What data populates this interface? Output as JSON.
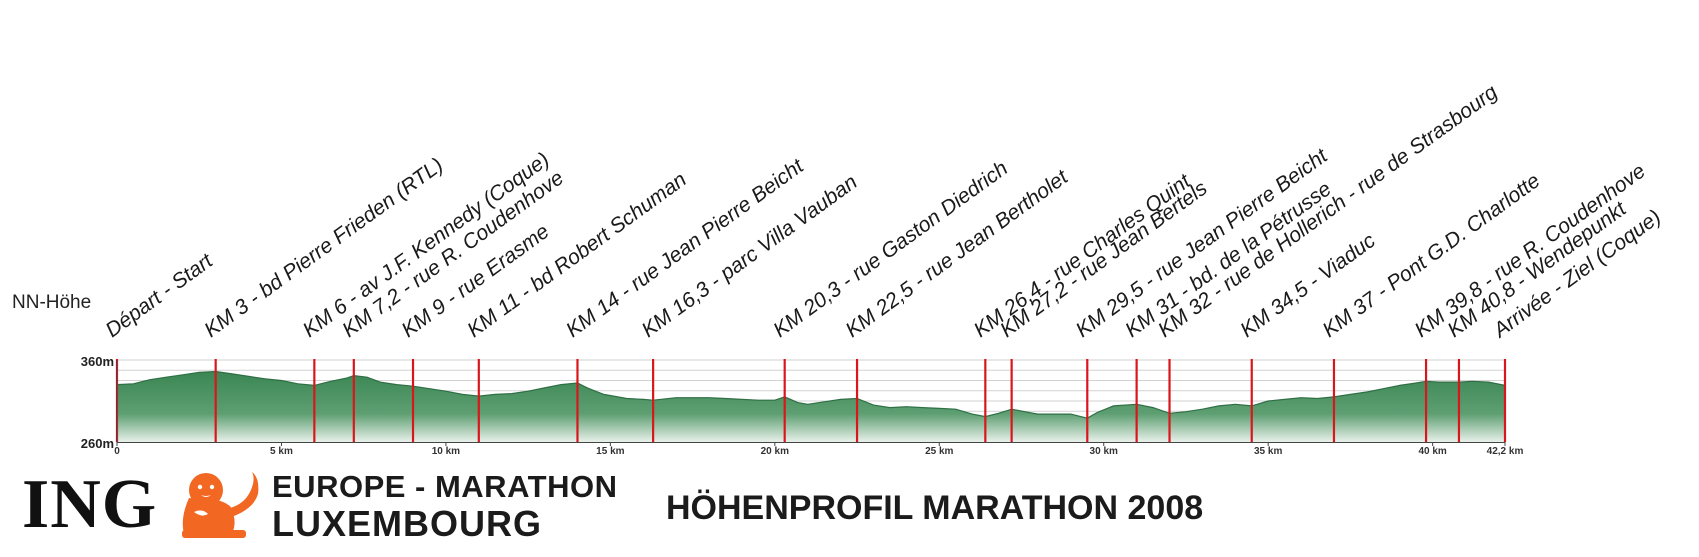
{
  "chart_data": {
    "type": "area",
    "title": "HÖHENPROFIL MARATHON 2008",
    "ylabel": "NN-Höhe",
    "ylim": [
      260,
      360
    ],
    "y_ticks": [
      "360m",
      "260m"
    ],
    "xlim": [
      0,
      42.2
    ],
    "x_ticks": [
      {
        "value": 0,
        "label": "0"
      },
      {
        "value": 5,
        "label": "5 km"
      },
      {
        "value": 10,
        "label": "10 km"
      },
      {
        "value": 15,
        "label": "15 km"
      },
      {
        "value": 20,
        "label": "20 km"
      },
      {
        "value": 25,
        "label": "25 km"
      },
      {
        "value": 30,
        "label": "30 km"
      },
      {
        "value": 35,
        "label": "35 km"
      },
      {
        "value": 40,
        "label": "40 km"
      },
      {
        "value": 42.2,
        "label": "42,2 km"
      }
    ],
    "grid": true,
    "fill_color": "#3c8a57",
    "marker_color": "#d9161c",
    "profile": [
      [
        0,
        330
      ],
      [
        0.5,
        331
      ],
      [
        1,
        336
      ],
      [
        1.5,
        339
      ],
      [
        2,
        342
      ],
      [
        2.5,
        345
      ],
      [
        3,
        346
      ],
      [
        3.5,
        343
      ],
      [
        4,
        340
      ],
      [
        4.5,
        337
      ],
      [
        5,
        335
      ],
      [
        5.5,
        331
      ],
      [
        6,
        329
      ],
      [
        6.5,
        334
      ],
      [
        7,
        338
      ],
      [
        7.2,
        341
      ],
      [
        7.6,
        339
      ],
      [
        8,
        333
      ],
      [
        8.5,
        330
      ],
      [
        9,
        328
      ],
      [
        9.5,
        325
      ],
      [
        10,
        322
      ],
      [
        10.5,
        318
      ],
      [
        11,
        316
      ],
      [
        11.5,
        318
      ],
      [
        12,
        319
      ],
      [
        12.5,
        322
      ],
      [
        13,
        326
      ],
      [
        13.5,
        330
      ],
      [
        14,
        332
      ],
      [
        14.3,
        326
      ],
      [
        14.8,
        318
      ],
      [
        15.5,
        313
      ],
      [
        16,
        312
      ],
      [
        16.3,
        311
      ],
      [
        17,
        314
      ],
      [
        17.5,
        314
      ],
      [
        18,
        314
      ],
      [
        18.5,
        313
      ],
      [
        19,
        312
      ],
      [
        19.5,
        311
      ],
      [
        20,
        311
      ],
      [
        20.3,
        315
      ],
      [
        20.7,
        308
      ],
      [
        21,
        306
      ],
      [
        21.5,
        309
      ],
      [
        22,
        312
      ],
      [
        22.5,
        313
      ],
      [
        23,
        305
      ],
      [
        23.5,
        302
      ],
      [
        24,
        303
      ],
      [
        24.5,
        302
      ],
      [
        25,
        301
      ],
      [
        25.5,
        300
      ],
      [
        26,
        294
      ],
      [
        26.4,
        291
      ],
      [
        26.8,
        295
      ],
      [
        27.2,
        300
      ],
      [
        27.6,
        297
      ],
      [
        28,
        294
      ],
      [
        28.5,
        294
      ],
      [
        29,
        294
      ],
      [
        29.5,
        289
      ],
      [
        29.8,
        296
      ],
      [
        30.3,
        304
      ],
      [
        31,
        306
      ],
      [
        31.5,
        302
      ],
      [
        32,
        295
      ],
      [
        32.5,
        297
      ],
      [
        33,
        300
      ],
      [
        33.5,
        304
      ],
      [
        34,
        306
      ],
      [
        34.5,
        304
      ],
      [
        35,
        310
      ],
      [
        35.5,
        312
      ],
      [
        36,
        314
      ],
      [
        36.5,
        313
      ],
      [
        37,
        315
      ],
      [
        37.5,
        318
      ],
      [
        38,
        321
      ],
      [
        38.5,
        325
      ],
      [
        39,
        329
      ],
      [
        39.5,
        332
      ],
      [
        39.8,
        334
      ],
      [
        40.2,
        333
      ],
      [
        40.8,
        333
      ],
      [
        41.2,
        334
      ],
      [
        41.7,
        333
      ],
      [
        42.2,
        329
      ]
    ],
    "checkpoints": [
      {
        "km": 0,
        "label": "Départ - Start"
      },
      {
        "km": 3,
        "label": "KM 3 - bd Pierre Frieden (RTL)"
      },
      {
        "km": 6,
        "label": "KM 6 - av J.F. Kennedy (Coque)"
      },
      {
        "km": 7.2,
        "label": "KM 7,2 - rue R. Coudenhove"
      },
      {
        "km": 9,
        "label": "KM 9 - rue Erasme"
      },
      {
        "km": 11,
        "label": "KM 11 - bd Robert Schuman"
      },
      {
        "km": 14,
        "label": "KM 14 - rue Jean Pierre Beicht"
      },
      {
        "km": 16.3,
        "label": "KM 16,3 - parc Villa Vauban"
      },
      {
        "km": 20.3,
        "label": "KM 20,3 - rue Gaston Diedrich"
      },
      {
        "km": 22.5,
        "label": "KM 22,5 - rue Jean Bertholet"
      },
      {
        "km": 26.4,
        "label": "KM 26,4 - rue Charles Quint"
      },
      {
        "km": 27.2,
        "label": "KM 27,2 - rue Jean Bertels"
      },
      {
        "km": 29.5,
        "label": "KM 29,5 - rue Jean Pierre Beicht"
      },
      {
        "km": 31,
        "label": "KM 31 - bd. de la Pétrusse"
      },
      {
        "km": 32,
        "label": "KM 32 - rue de Hollerich - rue de Strasbourg"
      },
      {
        "km": 34.5,
        "label": "KM 34,5 - Viaduc"
      },
      {
        "km": 37,
        "label": "KM 37 - Pont G.D. Charlotte"
      },
      {
        "km": 39.8,
        "label": "KM 39,8 - rue R. Coudenhove"
      },
      {
        "km": 40.8,
        "label": "KM 40,8 - Wendepunkt"
      },
      {
        "km": 42.2,
        "label": "Arrivée - Ziel (Coque)"
      }
    ]
  },
  "branding": {
    "ing": "ING",
    "event_line1": "EUROPE - MARATHON",
    "event_line2": "LUXEMBOURG",
    "logo_color": "#f26722"
  }
}
